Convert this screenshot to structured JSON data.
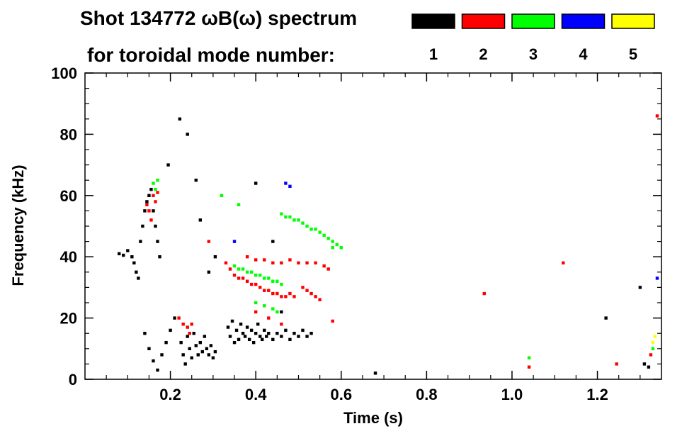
{
  "chart_data": {
    "type": "scatter",
    "title_line1": "Shot 134772 ωB(ω) spectrum",
    "title_line2": "for toroidal mode number:",
    "xlabel": "Time (s)",
    "ylabel": "Frequency (kHz)",
    "xlim": [
      0.0,
      1.35
    ],
    "ylim": [
      0,
      100
    ],
    "xticks": [
      0.2,
      0.4,
      0.6,
      0.8,
      1.0,
      1.2
    ],
    "xtick_labels": [
      "0.2",
      "0.4",
      "0.6",
      "0.8",
      "1.0",
      "1.2"
    ],
    "yticks": [
      0,
      20,
      40,
      60,
      80,
      100
    ],
    "ytick_labels": [
      "0",
      "20",
      "40",
      "60",
      "80",
      "100"
    ],
    "legend": [
      {
        "label": "1",
        "color": "#000000"
      },
      {
        "label": "2",
        "color": "#ff0000"
      },
      {
        "label": "3",
        "color": "#00ff00"
      },
      {
        "label": "4",
        "color": "#0000ff"
      },
      {
        "label": "5",
        "color": "#ffff00"
      }
    ],
    "series": [
      {
        "color": "#000000",
        "points": [
          [
            0.08,
            41
          ],
          [
            0.09,
            40.5
          ],
          [
            0.1,
            42
          ],
          [
            0.11,
            40
          ],
          [
            0.115,
            38
          ],
          [
            0.12,
            35
          ],
          [
            0.125,
            33
          ],
          [
            0.13,
            45
          ],
          [
            0.135,
            50
          ],
          [
            0.14,
            55
          ],
          [
            0.145,
            58
          ],
          [
            0.15,
            60
          ],
          [
            0.155,
            62
          ],
          [
            0.16,
            55
          ],
          [
            0.165,
            50
          ],
          [
            0.17,
            45
          ],
          [
            0.175,
            40
          ],
          [
            0.14,
            15
          ],
          [
            0.15,
            10
          ],
          [
            0.16,
            6
          ],
          [
            0.17,
            3
          ],
          [
            0.18,
            8
          ],
          [
            0.19,
            12
          ],
          [
            0.2,
            16
          ],
          [
            0.21,
            20
          ],
          [
            0.225,
            12
          ],
          [
            0.23,
            8
          ],
          [
            0.235,
            5
          ],
          [
            0.24,
            14
          ],
          [
            0.245,
            10
          ],
          [
            0.25,
            7
          ],
          [
            0.255,
            15
          ],
          [
            0.26,
            11
          ],
          [
            0.265,
            8
          ],
          [
            0.27,
            12
          ],
          [
            0.275,
            9
          ],
          [
            0.28,
            14
          ],
          [
            0.285,
            10
          ],
          [
            0.29,
            8
          ],
          [
            0.295,
            11
          ],
          [
            0.3,
            7
          ],
          [
            0.305,
            9
          ],
          [
            0.335,
            17
          ],
          [
            0.34,
            14
          ],
          [
            0.345,
            19
          ],
          [
            0.35,
            12
          ],
          [
            0.355,
            16
          ],
          [
            0.36,
            13
          ],
          [
            0.365,
            18
          ],
          [
            0.37,
            15
          ],
          [
            0.375,
            14
          ],
          [
            0.38,
            17
          ],
          [
            0.385,
            13
          ],
          [
            0.39,
            16
          ],
          [
            0.395,
            12
          ],
          [
            0.4,
            15
          ],
          [
            0.405,
            18
          ],
          [
            0.41,
            14
          ],
          [
            0.415,
            13
          ],
          [
            0.42,
            16
          ],
          [
            0.425,
            14
          ],
          [
            0.43,
            15
          ],
          [
            0.44,
            13
          ],
          [
            0.45,
            15
          ],
          [
            0.46,
            14
          ],
          [
            0.47,
            16
          ],
          [
            0.48,
            13
          ],
          [
            0.49,
            15
          ],
          [
            0.5,
            14
          ],
          [
            0.51,
            16
          ],
          [
            0.52,
            14
          ],
          [
            0.53,
            15
          ],
          [
            0.222,
            85
          ],
          [
            0.195,
            70
          ],
          [
            0.24,
            80
          ],
          [
            0.26,
            65
          ],
          [
            0.27,
            52
          ],
          [
            0.29,
            35
          ],
          [
            0.305,
            40
          ],
          [
            0.4,
            64
          ],
          [
            0.44,
            45
          ],
          [
            0.46,
            22
          ],
          [
            0.68,
            2
          ],
          [
            1.32,
            4
          ],
          [
            1.31,
            5
          ],
          [
            1.22,
            20
          ],
          [
            1.3,
            30
          ]
        ]
      },
      {
        "color": "#ff0000",
        "points": [
          [
            0.145,
            57
          ],
          [
            0.15,
            55
          ],
          [
            0.155,
            52
          ],
          [
            0.16,
            60
          ],
          [
            0.165,
            58
          ],
          [
            0.17,
            61
          ],
          [
            0.22,
            20
          ],
          [
            0.23,
            18
          ],
          [
            0.24,
            17
          ],
          [
            0.245,
            15
          ],
          [
            0.25,
            18
          ],
          [
            0.29,
            45
          ],
          [
            0.33,
            38
          ],
          [
            0.34,
            36
          ],
          [
            0.35,
            34
          ],
          [
            0.36,
            33
          ],
          [
            0.37,
            33
          ],
          [
            0.38,
            32
          ],
          [
            0.39,
            31
          ],
          [
            0.4,
            31
          ],
          [
            0.41,
            30
          ],
          [
            0.42,
            29
          ],
          [
            0.43,
            29
          ],
          [
            0.44,
            28
          ],
          [
            0.45,
            28
          ],
          [
            0.46,
            27
          ],
          [
            0.47,
            27
          ],
          [
            0.48,
            28
          ],
          [
            0.49,
            27
          ],
          [
            0.38,
            40
          ],
          [
            0.4,
            39
          ],
          [
            0.42,
            39
          ],
          [
            0.44,
            38
          ],
          [
            0.46,
            38
          ],
          [
            0.48,
            39
          ],
          [
            0.5,
            38
          ],
          [
            0.52,
            38
          ],
          [
            0.54,
            38
          ],
          [
            0.56,
            37
          ],
          [
            0.57,
            36
          ],
          [
            0.51,
            30
          ],
          [
            0.52,
            29
          ],
          [
            0.53,
            28
          ],
          [
            0.54,
            27
          ],
          [
            0.55,
            26
          ],
          [
            0.4,
            22
          ],
          [
            0.43,
            20
          ],
          [
            0.46,
            18
          ],
          [
            0.58,
            19
          ],
          [
            0.935,
            28
          ],
          [
            1.04,
            4
          ],
          [
            1.245,
            5
          ],
          [
            1.325,
            8
          ],
          [
            1.34,
            86
          ],
          [
            1.12,
            38
          ]
        ]
      },
      {
        "color": "#00ff00",
        "points": [
          [
            0.16,
            64
          ],
          [
            0.165,
            62
          ],
          [
            0.17,
            65
          ],
          [
            0.46,
            54
          ],
          [
            0.47,
            53
          ],
          [
            0.48,
            53
          ],
          [
            0.49,
            52
          ],
          [
            0.5,
            52
          ],
          [
            0.51,
            51
          ],
          [
            0.52,
            50
          ],
          [
            0.53,
            49
          ],
          [
            0.54,
            49
          ],
          [
            0.55,
            48
          ],
          [
            0.56,
            47
          ],
          [
            0.57,
            46
          ],
          [
            0.58,
            45
          ],
          [
            0.59,
            44
          ],
          [
            0.6,
            43
          ],
          [
            0.35,
            37
          ],
          [
            0.36,
            36
          ],
          [
            0.37,
            36
          ],
          [
            0.38,
            35
          ],
          [
            0.39,
            35
          ],
          [
            0.4,
            34
          ],
          [
            0.41,
            34
          ],
          [
            0.42,
            33
          ],
          [
            0.43,
            33
          ],
          [
            0.44,
            32
          ],
          [
            0.45,
            32
          ],
          [
            0.46,
            31
          ],
          [
            0.4,
            25
          ],
          [
            0.42,
            24
          ],
          [
            0.44,
            23
          ],
          [
            0.45,
            22
          ],
          [
            0.36,
            57
          ],
          [
            0.32,
            60
          ],
          [
            0.58,
            43
          ],
          [
            1.04,
            7
          ],
          [
            1.33,
            10
          ]
        ]
      },
      {
        "color": "#0000ff",
        "points": [
          [
            0.47,
            64
          ],
          [
            0.48,
            63
          ],
          [
            0.35,
            45
          ],
          [
            1.34,
            33
          ]
        ]
      },
      {
        "color": "#ffff00",
        "points": [
          [
            1.33,
            12
          ],
          [
            1.335,
            14
          ]
        ]
      }
    ]
  }
}
